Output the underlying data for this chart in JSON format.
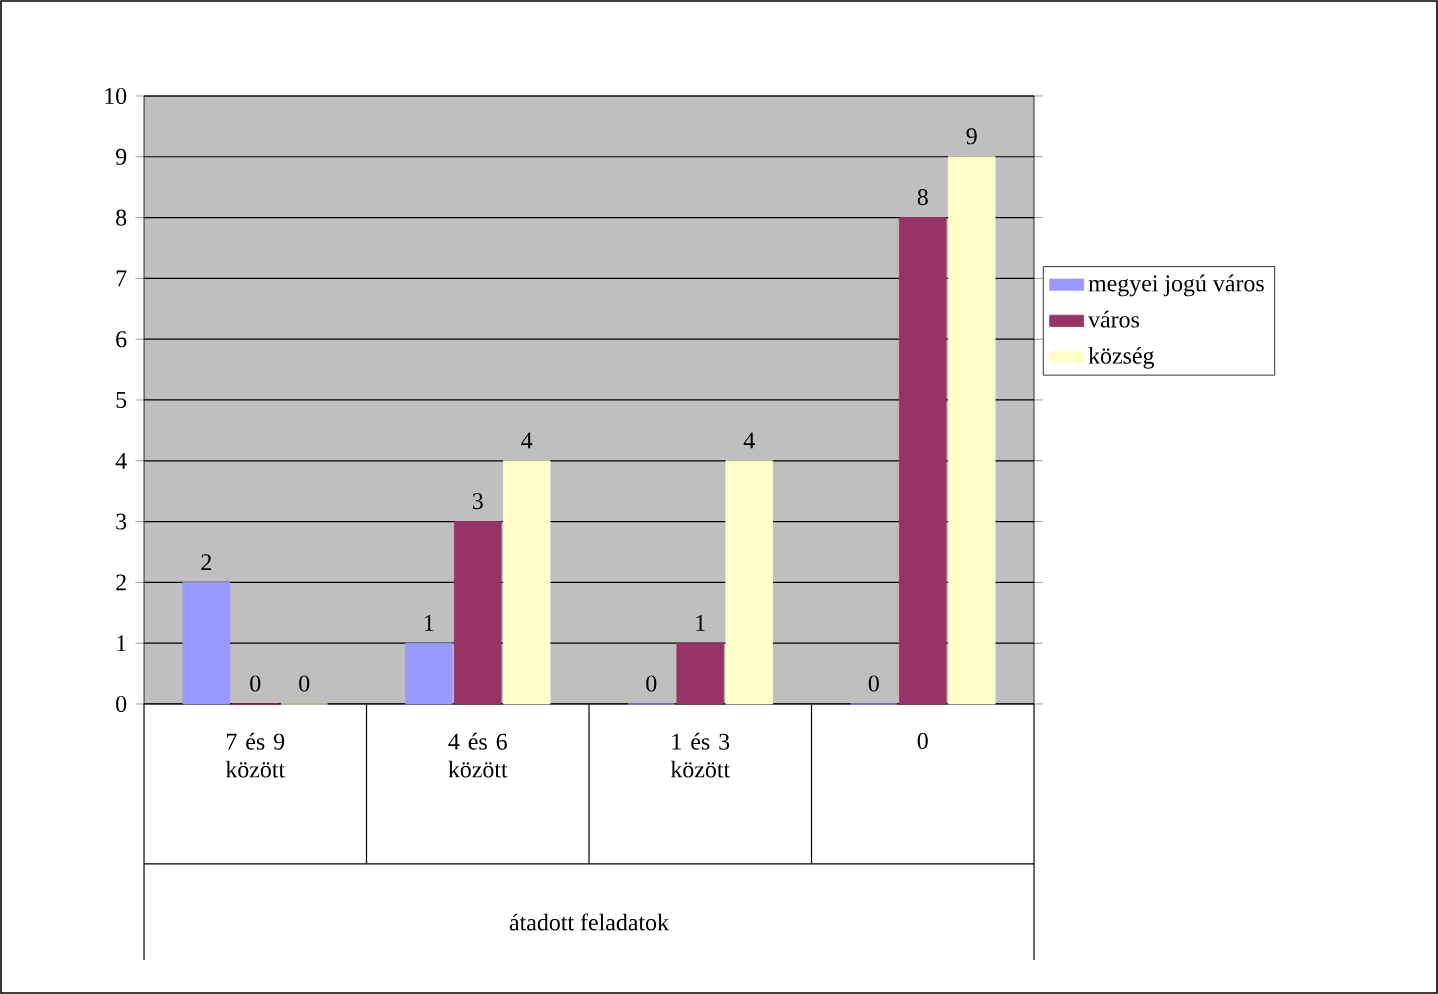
{
  "chart_data": {
    "type": "bar",
    "annotations": [
      "átadott feladatok"
    ],
    "categories": [
      "7 és 9 között",
      "4 és 6 között",
      "1 és 3 között",
      "0"
    ],
    "series": [
      {
        "name": "megyei jogú város",
        "color": "#9999ff",
        "values": [
          2,
          1,
          0,
          0
        ]
      },
      {
        "name": "város",
        "color": "#993366",
        "values": [
          0,
          3,
          1,
          8
        ]
      },
      {
        "name": "község",
        "color": "#ffffcc",
        "values": [
          0,
          4,
          4,
          9
        ]
      }
    ],
    "ylim": [
      0,
      10
    ],
    "yticks": [
      0,
      1,
      2,
      3,
      4,
      5,
      6,
      7,
      8,
      9,
      10
    ],
    "grid": "y",
    "legend": "right",
    "data_labels": true
  }
}
